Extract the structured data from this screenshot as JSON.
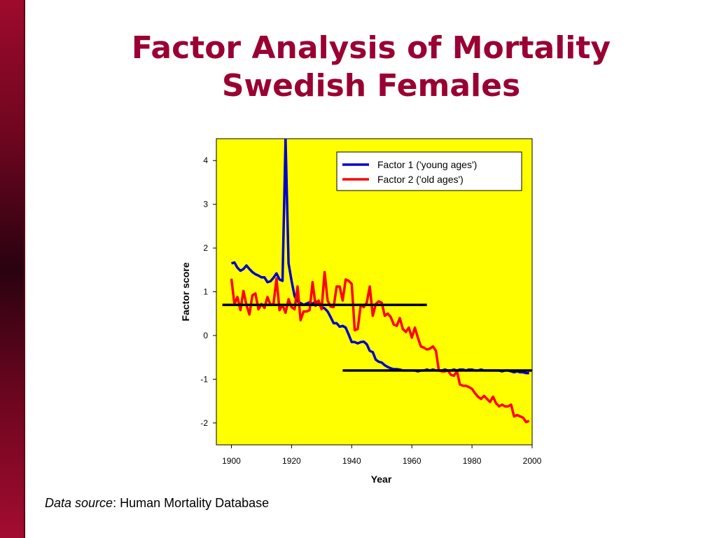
{
  "slide": {
    "title_line1": "Factor Analysis of Mortality",
    "title_line2": "Swedish Females",
    "source_label": "Data source",
    "source_text": ": Human Mortality Database",
    "colors": {
      "title": "#990033",
      "plot_bg": "#ffff00",
      "sidebar": "#7a0a24"
    }
  },
  "chart_data": {
    "type": "line",
    "title": "",
    "xlabel": "Year",
    "ylabel": "Factor score",
    "xlim": [
      1895,
      2000
    ],
    "ylim": [
      -2.5,
      4.5
    ],
    "xticks": [
      "1900",
      "1920",
      "1940",
      "1960",
      "1980",
      "2000"
    ],
    "yticks": [
      "4",
      "3",
      "2",
      "1",
      "0",
      "-1",
      "-2"
    ],
    "grid": false,
    "legend_position": "top-right",
    "plot_background": "#ffff00",
    "series": [
      {
        "name": "Factor 1 ('young ages')",
        "color": "#0000cc",
        "x": [
          1900,
          1901,
          1902,
          1903,
          1904,
          1905,
          1906,
          1907,
          1908,
          1909,
          1910,
          1911,
          1912,
          1913,
          1914,
          1915,
          1916,
          1917,
          1918,
          1919,
          1920,
          1921,
          1922,
          1923,
          1924,
          1925,
          1926,
          1927,
          1928,
          1929,
          1930,
          1931,
          1932,
          1933,
          1934,
          1935,
          1936,
          1937,
          1938,
          1939,
          1940,
          1941,
          1942,
          1943,
          1944,
          1945,
          1946,
          1947,
          1948,
          1949,
          1950,
          1951,
          1952,
          1953,
          1954,
          1955,
          1956,
          1957,
          1958,
          1959,
          1960,
          1961,
          1962,
          1963,
          1964,
          1965,
          1966,
          1967,
          1968,
          1969,
          1970,
          1971,
          1972,
          1973,
          1974,
          1975,
          1976,
          1977,
          1978,
          1979,
          1980,
          1981,
          1982,
          1983,
          1984,
          1985,
          1986,
          1987,
          1988,
          1989,
          1990,
          1991,
          1992,
          1993,
          1994,
          1995,
          1996,
          1997,
          1998,
          1999
        ],
        "y": [
          1.65,
          1.67,
          1.55,
          1.48,
          1.52,
          1.6,
          1.52,
          1.45,
          1.4,
          1.37,
          1.33,
          1.33,
          1.22,
          1.24,
          1.32,
          1.42,
          1.28,
          1.25,
          4.5,
          1.65,
          1.25,
          0.9,
          0.78,
          0.74,
          0.7,
          0.73,
          0.76,
          0.72,
          0.78,
          0.72,
          0.65,
          0.62,
          0.55,
          0.42,
          0.28,
          0.28,
          0.2,
          0.22,
          0.18,
          0.02,
          -0.15,
          -0.15,
          -0.18,
          -0.15,
          -0.14,
          -0.2,
          -0.35,
          -0.38,
          -0.55,
          -0.6,
          -0.62,
          -0.68,
          -0.72,
          -0.75,
          -0.77,
          -0.77,
          -0.78,
          -0.8,
          -0.8,
          -0.8,
          -0.8,
          -0.8,
          -0.82,
          -0.8,
          -0.8,
          -0.78,
          -0.8,
          -0.78,
          -0.8,
          -0.8,
          -0.8,
          -0.78,
          -0.8,
          -0.8,
          -0.78,
          -0.8,
          -0.78,
          -0.78,
          -0.8,
          -0.78,
          -0.78,
          -0.8,
          -0.8,
          -0.78,
          -0.8,
          -0.8,
          -0.8,
          -0.8,
          -0.8,
          -0.8,
          -0.82,
          -0.8,
          -0.8,
          -0.82,
          -0.84,
          -0.82,
          -0.84,
          -0.84,
          -0.86,
          -0.86
        ]
      },
      {
        "name": "Factor 2 ('old ages')",
        "color": "#ff0000",
        "x": [
          1900,
          1901,
          1902,
          1903,
          1904,
          1905,
          1906,
          1907,
          1908,
          1909,
          1910,
          1911,
          1912,
          1913,
          1914,
          1915,
          1916,
          1917,
          1918,
          1919,
          1920,
          1921,
          1922,
          1923,
          1924,
          1925,
          1926,
          1927,
          1928,
          1929,
          1930,
          1931,
          1932,
          1933,
          1934,
          1935,
          1936,
          1937,
          1938,
          1939,
          1940,
          1941,
          1942,
          1943,
          1944,
          1945,
          1946,
          1947,
          1948,
          1949,
          1950,
          1951,
          1952,
          1953,
          1954,
          1955,
          1956,
          1957,
          1958,
          1959,
          1960,
          1961,
          1962,
          1963,
          1964,
          1965,
          1966,
          1967,
          1968,
          1969,
          1970,
          1971,
          1972,
          1973,
          1974,
          1975,
          1976,
          1977,
          1978,
          1979,
          1980,
          1981,
          1982,
          1983,
          1984,
          1985,
          1986,
          1987,
          1988,
          1989,
          1990,
          1991,
          1992,
          1993,
          1994,
          1995,
          1996,
          1997,
          1998,
          1999
        ],
        "y": [
          1.3,
          0.72,
          0.88,
          0.58,
          1.02,
          0.7,
          0.48,
          0.92,
          0.96,
          0.6,
          0.72,
          0.63,
          0.88,
          0.7,
          0.72,
          1.3,
          0.58,
          0.7,
          0.52,
          0.83,
          0.65,
          0.6,
          1.12,
          0.35,
          0.55,
          0.55,
          0.58,
          1.22,
          0.68,
          0.8,
          0.6,
          1.45,
          0.8,
          0.66,
          0.65,
          1.12,
          1.12,
          0.8,
          1.28,
          1.25,
          1.18,
          0.12,
          0.15,
          0.7,
          0.65,
          0.75,
          1.12,
          0.45,
          0.72,
          0.78,
          0.75,
          0.45,
          0.5,
          0.42,
          0.25,
          0.22,
          0.4,
          0.15,
          0.08,
          0.18,
          -0.05,
          0.18,
          -0.05,
          -0.25,
          -0.28,
          -0.32,
          -0.3,
          -0.25,
          -0.35,
          -0.8,
          -0.82,
          -0.82,
          -0.8,
          -0.9,
          -0.92,
          -0.82,
          -1.12,
          -1.15,
          -1.15,
          -1.18,
          -1.22,
          -1.32,
          -1.4,
          -1.45,
          -1.38,
          -1.45,
          -1.52,
          -1.4,
          -1.55,
          -1.62,
          -1.58,
          -1.62,
          -1.62,
          -1.58,
          -1.85,
          -1.82,
          -1.85,
          -1.88,
          -1.98,
          -1.95
        ]
      }
    ],
    "reference_lines": [
      {
        "x_start": 1897,
        "x_end": 1965,
        "y": 0.7,
        "color": "#000000"
      },
      {
        "x_start": 1937,
        "x_end": 2000,
        "y": -0.8,
        "color": "#000000"
      }
    ]
  }
}
